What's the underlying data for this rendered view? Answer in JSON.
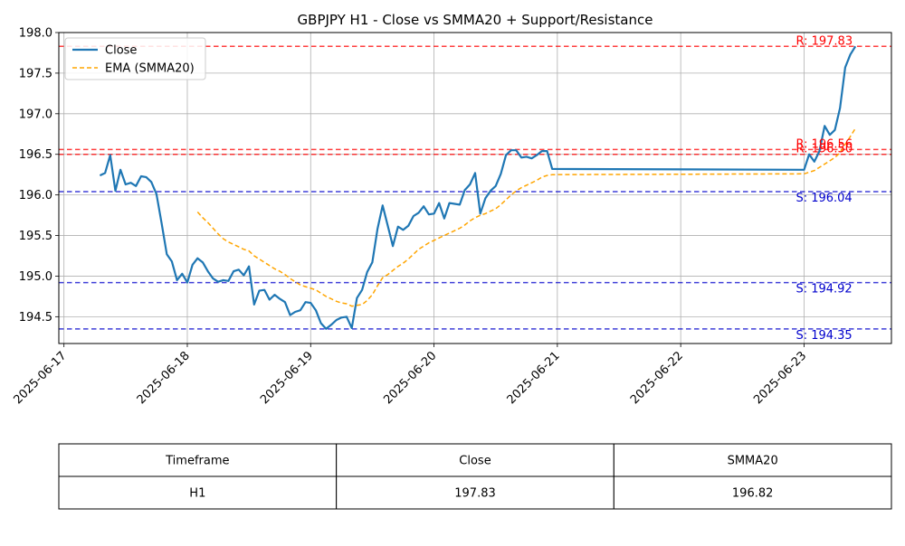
{
  "chart_data": {
    "type": "line",
    "title": "GBPJPY H1 - Close vs SMMA20 + Support/Resistance",
    "xlabel": "",
    "ylabel": "",
    "x_ticks": [
      "2025-06-17",
      "2025-06-18",
      "2025-06-19",
      "2025-06-20",
      "2025-06-21",
      "2025-06-22",
      "2025-06-23"
    ],
    "xlim": [
      "2025-06-16 23:00",
      "2025-06-23 17:00"
    ],
    "ylim": [
      194.17,
      198.0
    ],
    "y_ticks": [
      "194.5",
      "195.0",
      "195.5",
      "196.0",
      "196.5",
      "197.0",
      "197.5",
      "198.0"
    ],
    "grid": true,
    "legend_position": "top-left",
    "colors": {
      "close": "#1f77b4",
      "smma": "#ffa500",
      "resistance": "#ff0000",
      "support": "#0000cc"
    },
    "series": [
      {
        "name": "Close",
        "style": "solid",
        "points": [
          [
            "2025-06-17 07:00",
            196.24
          ],
          [
            "2025-06-17 08:00",
            196.27
          ],
          [
            "2025-06-17 09:00",
            196.49
          ],
          [
            "2025-06-17 10:00",
            196.05
          ],
          [
            "2025-06-17 11:00",
            196.31
          ],
          [
            "2025-06-17 12:00",
            196.13
          ],
          [
            "2025-06-17 13:00",
            196.15
          ],
          [
            "2025-06-17 14:00",
            196.11
          ],
          [
            "2025-06-17 15:00",
            196.23
          ],
          [
            "2025-06-17 16:00",
            196.22
          ],
          [
            "2025-06-17 17:00",
            196.16
          ],
          [
            "2025-06-17 18:00",
            196.01
          ],
          [
            "2025-06-17 19:00",
            195.65
          ],
          [
            "2025-06-17 20:00",
            195.27
          ],
          [
            "2025-06-17 21:00",
            195.18
          ],
          [
            "2025-06-17 22:00",
            194.95
          ],
          [
            "2025-06-17 23:00",
            195.03
          ],
          [
            "2025-06-18 00:00",
            194.92
          ],
          [
            "2025-06-18 01:00",
            195.14
          ],
          [
            "2025-06-18 02:00",
            195.22
          ],
          [
            "2025-06-18 03:00",
            195.17
          ],
          [
            "2025-06-18 04:00",
            195.06
          ],
          [
            "2025-06-18 05:00",
            194.97
          ],
          [
            "2025-06-18 06:00",
            194.93
          ],
          [
            "2025-06-18 07:00",
            194.95
          ],
          [
            "2025-06-18 08:00",
            194.94
          ],
          [
            "2025-06-18 09:00",
            195.06
          ],
          [
            "2025-06-18 10:00",
            195.08
          ],
          [
            "2025-06-18 11:00",
            195.01
          ],
          [
            "2025-06-18 12:00",
            195.12
          ],
          [
            "2025-06-18 13:00",
            194.65
          ],
          [
            "2025-06-18 14:00",
            194.82
          ],
          [
            "2025-06-18 15:00",
            194.83
          ],
          [
            "2025-06-18 16:00",
            194.71
          ],
          [
            "2025-06-18 17:00",
            194.77
          ],
          [
            "2025-06-18 18:00",
            194.72
          ],
          [
            "2025-06-18 19:00",
            194.68
          ],
          [
            "2025-06-18 20:00",
            194.52
          ],
          [
            "2025-06-18 21:00",
            194.56
          ],
          [
            "2025-06-18 22:00",
            194.58
          ],
          [
            "2025-06-18 23:00",
            194.68
          ],
          [
            "2025-06-19 00:00",
            194.67
          ],
          [
            "2025-06-19 01:00",
            194.58
          ],
          [
            "2025-06-19 02:00",
            194.42
          ],
          [
            "2025-06-19 03:00",
            194.35
          ],
          [
            "2025-06-19 04:00",
            194.4
          ],
          [
            "2025-06-19 05:00",
            194.46
          ],
          [
            "2025-06-19 06:00",
            194.49
          ],
          [
            "2025-06-19 07:00",
            194.5
          ],
          [
            "2025-06-19 08:00",
            194.36
          ],
          [
            "2025-06-19 09:00",
            194.73
          ],
          [
            "2025-06-19 10:00",
            194.83
          ],
          [
            "2025-06-19 11:00",
            195.05
          ],
          [
            "2025-06-19 12:00",
            195.17
          ],
          [
            "2025-06-19 13:00",
            195.58
          ],
          [
            "2025-06-19 14:00",
            195.87
          ],
          [
            "2025-06-19 15:00",
            195.62
          ],
          [
            "2025-06-19 16:00",
            195.37
          ],
          [
            "2025-06-19 17:00",
            195.61
          ],
          [
            "2025-06-19 18:00",
            195.57
          ],
          [
            "2025-06-19 19:00",
            195.62
          ],
          [
            "2025-06-19 20:00",
            195.74
          ],
          [
            "2025-06-19 21:00",
            195.78
          ],
          [
            "2025-06-19 22:00",
            195.86
          ],
          [
            "2025-06-19 23:00",
            195.76
          ],
          [
            "2025-06-20 00:00",
            195.77
          ],
          [
            "2025-06-20 01:00",
            195.9
          ],
          [
            "2025-06-20 02:00",
            195.71
          ],
          [
            "2025-06-20 03:00",
            195.9
          ],
          [
            "2025-06-20 04:00",
            195.89
          ],
          [
            "2025-06-20 05:00",
            195.88
          ],
          [
            "2025-06-20 06:00",
            196.06
          ],
          [
            "2025-06-20 07:00",
            196.13
          ],
          [
            "2025-06-20 08:00",
            196.27
          ],
          [
            "2025-06-20 09:00",
            195.77
          ],
          [
            "2025-06-20 10:00",
            195.96
          ],
          [
            "2025-06-20 11:00",
            196.05
          ],
          [
            "2025-06-20 12:00",
            196.11
          ],
          [
            "2025-06-20 13:00",
            196.26
          ],
          [
            "2025-06-20 14:00",
            196.49
          ],
          [
            "2025-06-20 15:00",
            196.55
          ],
          [
            "2025-06-20 16:00",
            196.55
          ],
          [
            "2025-06-20 17:00",
            196.46
          ],
          [
            "2025-06-20 18:00",
            196.47
          ],
          [
            "2025-06-20 19:00",
            196.45
          ],
          [
            "2025-06-20 20:00",
            196.49
          ],
          [
            "2025-06-20 21:00",
            196.54
          ],
          [
            "2025-06-20 22:00",
            196.54
          ],
          [
            "2025-06-20 23:00",
            196.32
          ],
          [
            "2025-06-23 00:00",
            196.31
          ],
          [
            "2025-06-23 01:00",
            196.5
          ],
          [
            "2025-06-23 02:00",
            196.41
          ],
          [
            "2025-06-23 03:00",
            196.54
          ],
          [
            "2025-06-23 04:00",
            196.85
          ],
          [
            "2025-06-23 05:00",
            196.74
          ],
          [
            "2025-06-23 06:00",
            196.8
          ],
          [
            "2025-06-23 07:00",
            197.07
          ],
          [
            "2025-06-23 08:00",
            197.57
          ],
          [
            "2025-06-23 09:00",
            197.73
          ],
          [
            "2025-06-23 10:00",
            197.83
          ]
        ]
      },
      {
        "name": "EMA (SMMA20)",
        "style": "dashed",
        "points": [
          [
            "2025-06-18 02:00",
            195.79
          ],
          [
            "2025-06-18 03:00",
            195.72
          ],
          [
            "2025-06-18 04:00",
            195.66
          ],
          [
            "2025-06-18 05:00",
            195.59
          ],
          [
            "2025-06-18 06:00",
            195.52
          ],
          [
            "2025-06-18 07:00",
            195.46
          ],
          [
            "2025-06-18 08:00",
            195.42
          ],
          [
            "2025-06-18 09:00",
            195.39
          ],
          [
            "2025-06-18 10:00",
            195.36
          ],
          [
            "2025-06-18 11:00",
            195.33
          ],
          [
            "2025-06-18 12:00",
            195.31
          ],
          [
            "2025-06-18 13:00",
            195.25
          ],
          [
            "2025-06-18 14:00",
            195.21
          ],
          [
            "2025-06-18 15:00",
            195.17
          ],
          [
            "2025-06-18 16:00",
            195.13
          ],
          [
            "2025-06-18 17:00",
            195.09
          ],
          [
            "2025-06-18 18:00",
            195.06
          ],
          [
            "2025-06-18 19:00",
            195.02
          ],
          [
            "2025-06-18 20:00",
            194.97
          ],
          [
            "2025-06-18 21:00",
            194.93
          ],
          [
            "2025-06-18 22:00",
            194.89
          ],
          [
            "2025-06-18 23:00",
            194.87
          ],
          [
            "2025-06-19 00:00",
            194.85
          ],
          [
            "2025-06-19 01:00",
            194.83
          ],
          [
            "2025-06-19 02:00",
            194.79
          ],
          [
            "2025-06-19 03:00",
            194.75
          ],
          [
            "2025-06-19 04:00",
            194.72
          ],
          [
            "2025-06-19 05:00",
            194.69
          ],
          [
            "2025-06-19 06:00",
            194.67
          ],
          [
            "2025-06-19 07:00",
            194.66
          ],
          [
            "2025-06-19 08:00",
            194.63
          ],
          [
            "2025-06-19 09:00",
            194.64
          ],
          [
            "2025-06-19 10:00",
            194.65
          ],
          [
            "2025-06-19 11:00",
            194.7
          ],
          [
            "2025-06-19 12:00",
            194.77
          ],
          [
            "2025-06-19 13:00",
            194.88
          ],
          [
            "2025-06-19 14:00",
            194.98
          ],
          [
            "2025-06-19 15:00",
            195.02
          ],
          [
            "2025-06-19 16:00",
            195.07
          ],
          [
            "2025-06-19 17:00",
            195.12
          ],
          [
            "2025-06-19 18:00",
            195.16
          ],
          [
            "2025-06-19 19:00",
            195.21
          ],
          [
            "2025-06-19 20:00",
            195.27
          ],
          [
            "2025-06-19 21:00",
            195.33
          ],
          [
            "2025-06-19 22:00",
            195.37
          ],
          [
            "2025-06-19 23:00",
            195.41
          ],
          [
            "2025-06-20 00:00",
            195.44
          ],
          [
            "2025-06-20 01:00",
            195.47
          ],
          [
            "2025-06-20 02:00",
            195.5
          ],
          [
            "2025-06-20 03:00",
            195.53
          ],
          [
            "2025-06-20 04:00",
            195.56
          ],
          [
            "2025-06-20 05:00",
            195.59
          ],
          [
            "2025-06-20 06:00",
            195.63
          ],
          [
            "2025-06-20 07:00",
            195.68
          ],
          [
            "2025-06-20 08:00",
            195.72
          ],
          [
            "2025-06-20 09:00",
            195.75
          ],
          [
            "2025-06-20 10:00",
            195.77
          ],
          [
            "2025-06-20 11:00",
            195.8
          ],
          [
            "2025-06-20 12:00",
            195.83
          ],
          [
            "2025-06-20 13:00",
            195.88
          ],
          [
            "2025-06-20 14:00",
            195.94
          ],
          [
            "2025-06-20 15:00",
            196.0
          ],
          [
            "2025-06-20 16:00",
            196.05
          ],
          [
            "2025-06-20 17:00",
            196.09
          ],
          [
            "2025-06-20 18:00",
            196.12
          ],
          [
            "2025-06-20 19:00",
            196.15
          ],
          [
            "2025-06-20 20:00",
            196.18
          ],
          [
            "2025-06-20 21:00",
            196.22
          ],
          [
            "2025-06-20 22:00",
            196.24
          ],
          [
            "2025-06-20 23:00",
            196.25
          ],
          [
            "2025-06-23 00:00",
            196.26
          ],
          [
            "2025-06-23 01:00",
            196.28
          ],
          [
            "2025-06-23 02:00",
            196.3
          ],
          [
            "2025-06-23 03:00",
            196.34
          ],
          [
            "2025-06-23 04:00",
            196.38
          ],
          [
            "2025-06-23 05:00",
            196.42
          ],
          [
            "2025-06-23 06:00",
            196.46
          ],
          [
            "2025-06-23 07:00",
            196.52
          ],
          [
            "2025-06-23 08:00",
            196.62
          ],
          [
            "2025-06-23 09:00",
            196.72
          ],
          [
            "2025-06-23 10:00",
            196.82
          ]
        ]
      }
    ],
    "resistance_levels": [
      {
        "value": 197.83,
        "label": "R: 197.83"
      },
      {
        "value": 196.56,
        "label": "R: 196.56"
      },
      {
        "value": 196.5,
        "label": "R: 196.50"
      }
    ],
    "support_levels": [
      {
        "value": 196.04,
        "label": "S: 196.04"
      },
      {
        "value": 194.92,
        "label": "S: 194.92"
      },
      {
        "value": 194.35,
        "label": "S: 194.35"
      }
    ],
    "legend": [
      {
        "label": "Close",
        "color_key": "close",
        "style": "solid"
      },
      {
        "label": "EMA (SMMA20)",
        "color_key": "smma",
        "style": "dashed"
      }
    ]
  },
  "table": {
    "headers": [
      "Timeframe",
      "Close",
      "SMMA20"
    ],
    "rows": [
      [
        "H1",
        "197.83",
        "196.82"
      ]
    ]
  }
}
